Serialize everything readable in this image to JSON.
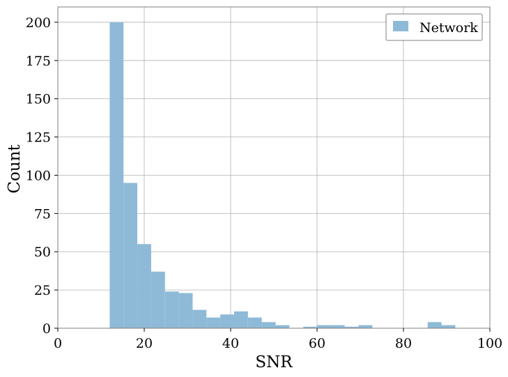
{
  "chart_data": {
    "type": "bar",
    "subtype": "histogram",
    "xlabel": "SNR",
    "ylabel": "Count",
    "xlim": [
      0,
      100
    ],
    "ylim": [
      0,
      210
    ],
    "xticks": [
      0,
      20,
      40,
      60,
      80,
      100
    ],
    "yticks": [
      0,
      25,
      50,
      75,
      100,
      125,
      150,
      175,
      200
    ],
    "grid": true,
    "legend": {
      "placement": "top-right",
      "entries": [
        "Network"
      ]
    },
    "colors": {
      "bar": "#8ebad8",
      "grid": "#b0b0b0",
      "frame": "#7f7f7f"
    },
    "series": [
      {
        "name": "Network",
        "bin_edges": [
          12,
          15.2,
          18.4,
          21.6,
          24.8,
          28,
          31.2,
          34.4,
          37.6,
          40.8,
          44,
          47.2,
          50.4,
          53.6,
          56.8,
          60,
          63.2,
          66.4,
          69.6,
          72.8,
          76,
          79.2,
          82.4,
          85.6,
          88.8,
          92
        ],
        "counts": [
          200,
          95,
          55,
          37,
          24,
          23,
          12,
          7,
          9,
          11,
          7,
          4,
          2,
          0,
          1,
          2,
          2,
          1,
          2,
          0,
          0,
          0,
          0,
          4,
          2
        ]
      }
    ]
  }
}
